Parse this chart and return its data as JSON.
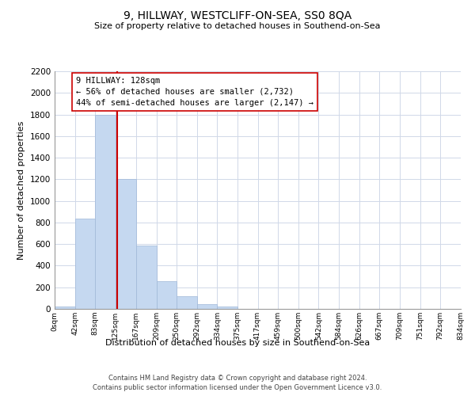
{
  "title": "9, HILLWAY, WESTCLIFF-ON-SEA, SS0 8QA",
  "subtitle": "Size of property relative to detached houses in Southend-on-Sea",
  "xlabel": "Distribution of detached houses by size in Southend-on-Sea",
  "ylabel": "Number of detached properties",
  "bar_edges": [
    0,
    42,
    83,
    125,
    167,
    209,
    250,
    292,
    334,
    375,
    417,
    459,
    500,
    542,
    584,
    626,
    667,
    709,
    751,
    792,
    834
  ],
  "bar_heights": [
    25,
    835,
    1800,
    1200,
    590,
    255,
    120,
    45,
    25,
    0,
    0,
    0,
    0,
    0,
    0,
    0,
    0,
    0,
    0,
    0
  ],
  "tick_labels": [
    "0sqm",
    "42sqm",
    "83sqm",
    "125sqm",
    "167sqm",
    "209sqm",
    "250sqm",
    "292sqm",
    "334sqm",
    "375sqm",
    "417sqm",
    "459sqm",
    "500sqm",
    "542sqm",
    "584sqm",
    "626sqm",
    "667sqm",
    "709sqm",
    "751sqm",
    "792sqm",
    "834sqm"
  ],
  "bar_color": "#c5d8f0",
  "bar_edge_color": "#a0b8d8",
  "vline_x": 128,
  "vline_color": "#cc0000",
  "annotation_title": "9 HILLWAY: 128sqm",
  "annotation_line1": "← 56% of detached houses are smaller (2,732)",
  "annotation_line2": "44% of semi-detached houses are larger (2,147) →",
  "annotation_box_color": "#ffffff",
  "annotation_box_edgecolor": "#cc0000",
  "ylim": [
    0,
    2200
  ],
  "yticks": [
    0,
    200,
    400,
    600,
    800,
    1000,
    1200,
    1400,
    1600,
    1800,
    2000,
    2200
  ],
  "footnote1": "Contains HM Land Registry data © Crown copyright and database right 2024.",
  "footnote2": "Contains public sector information licensed under the Open Government Licence v3.0.",
  "bg_color": "#ffffff",
  "grid_color": "#d0d8e8"
}
